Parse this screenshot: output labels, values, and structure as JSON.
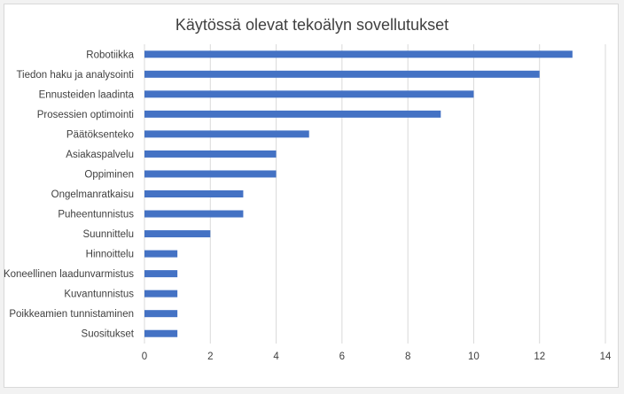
{
  "chart_data": {
    "type": "bar",
    "orientation": "horizontal",
    "title": "Käytössä olevat tekoälyn sovellutukset",
    "xlabel": "",
    "ylabel": "",
    "categories": [
      "Robotiikka",
      "Tiedon haku ja analysointi",
      "Ennusteiden laadinta",
      "Prosessien optimointi",
      "Päätöksenteko",
      "Asiakaspalvelu",
      "Oppiminen",
      "Ongelmanratkaisu",
      "Puheentunnistus",
      "Suunnittelu",
      "Hinnoittelu",
      "Koneellinen laadunvarmistus",
      "Kuvantunnistus",
      "Poikkeamien tunnistaminen",
      "Suositukset"
    ],
    "values": [
      13,
      12,
      10,
      9,
      5,
      4,
      4,
      3,
      3,
      2,
      1,
      1,
      1,
      1,
      1
    ],
    "xlim": [
      0,
      14
    ],
    "xticks": [
      "0",
      "2",
      "4",
      "6",
      "8",
      "10",
      "12",
      "14"
    ],
    "grid": "vertical",
    "legend": "none",
    "bar_color": "#4472c4",
    "grid_color": "#d9d9d9"
  }
}
